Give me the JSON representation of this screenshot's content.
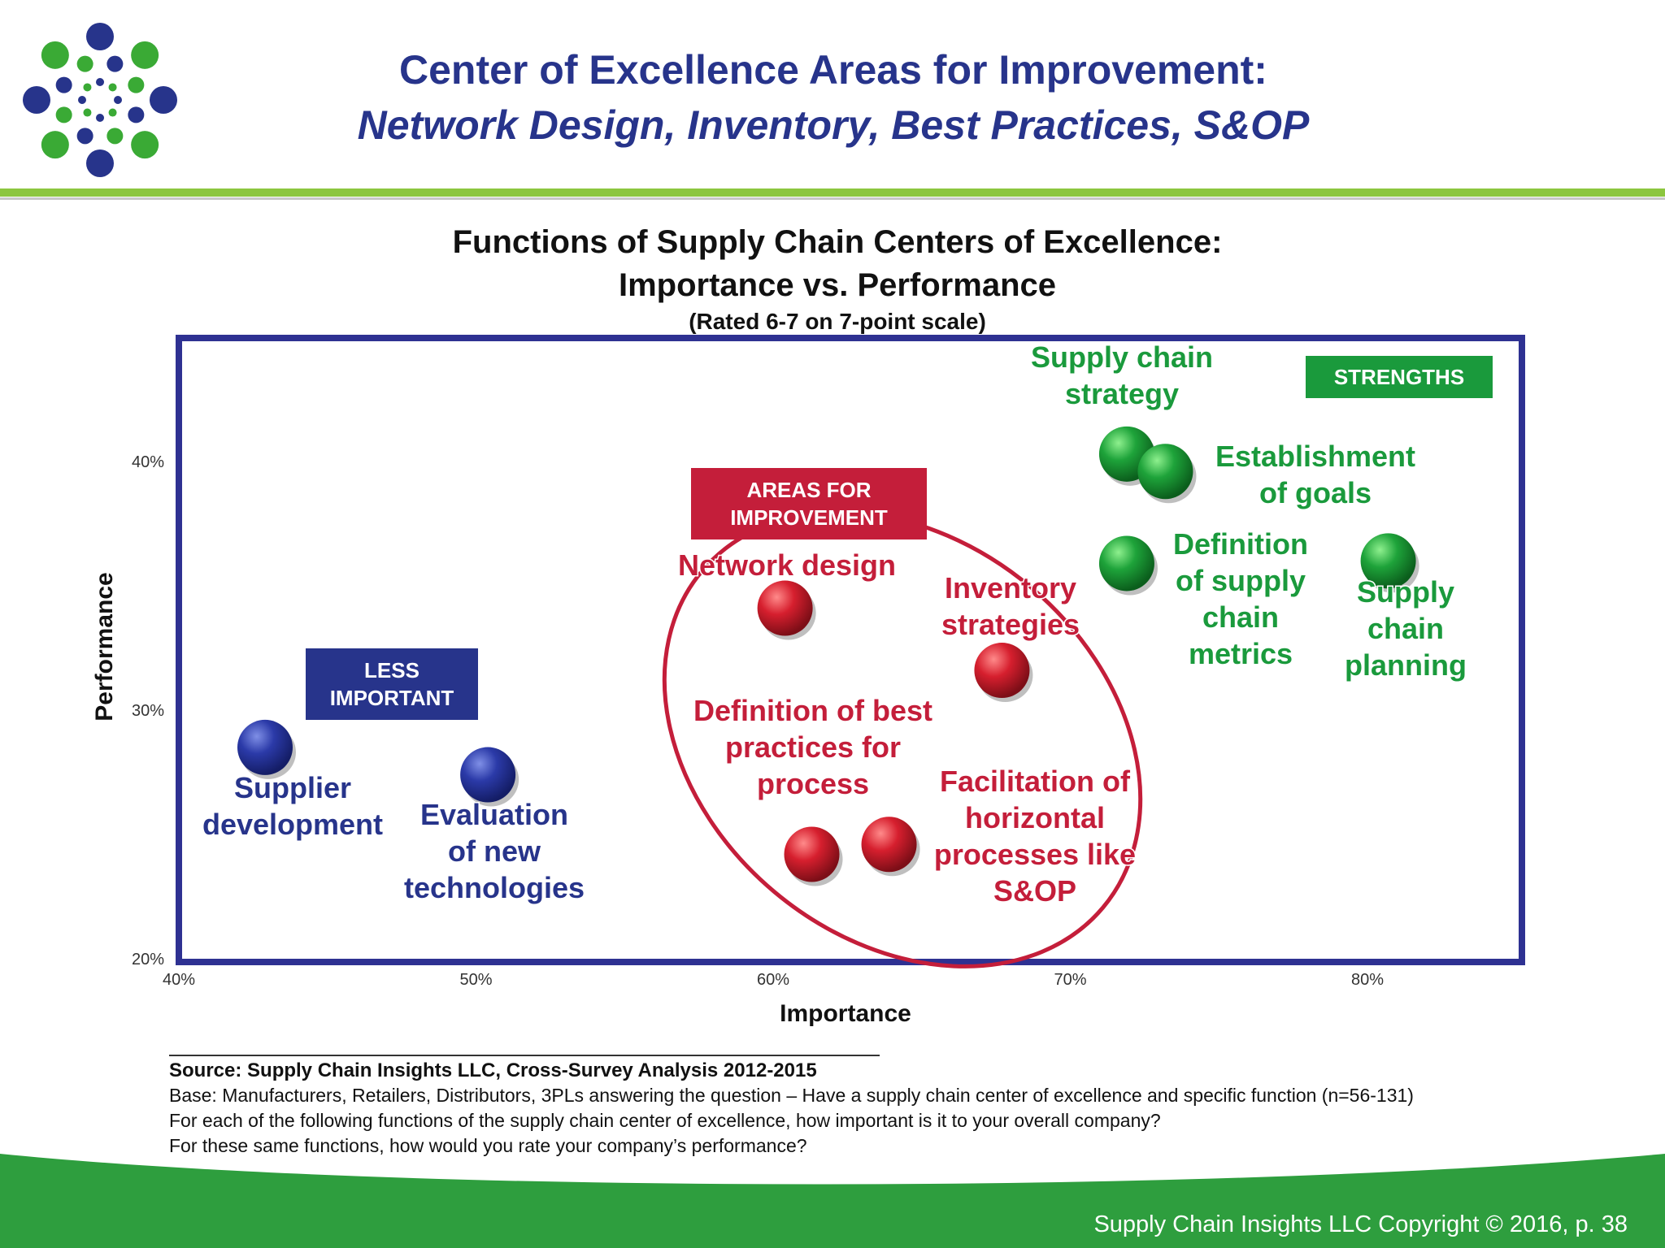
{
  "slide": {
    "title_line1": "Center of Excellence Areas for Improvement:",
    "title_line2": "Network Design, Inventory, Best Practices, S&OP",
    "copyright": "Supply Chain Insights LLC Copyright © 2016, p. 38"
  },
  "colors": {
    "navy": "#27348b",
    "green": "#1a9a3c",
    "red": "#c41e3a",
    "lime": "#8cc63f",
    "frame": "#2e3192"
  },
  "chart_data": {
    "type": "scatter",
    "title": "Functions of Supply Chain Centers of Excellence: Importance vs. Performance",
    "title_line1": "Functions of Supply Chain Centers of Excellence:",
    "title_line2": "Importance vs. Performance",
    "subtitle": "(Rated 6-7 on 7-point scale)",
    "xlabel": "Importance",
    "ylabel": "Performance",
    "xlim": [
      40,
      85
    ],
    "ylim": [
      20,
      45
    ],
    "x_ticks": [
      40,
      50,
      60,
      70,
      80
    ],
    "x_tick_labels": [
      "40%",
      "50%",
      "60%",
      "70%",
      "80%"
    ],
    "y_ticks": [
      20,
      30,
      40
    ],
    "y_tick_labels": [
      "20%",
      "30%",
      "40%"
    ],
    "grid": false,
    "groups": [
      {
        "label": "LESS IMPORTANT",
        "label_lines": [
          "LESS",
          "IMPORTANT"
        ],
        "color": "#27348b"
      },
      {
        "label": "AREAS FOR IMPROVEMENT",
        "label_lines": [
          "AREAS FOR",
          "IMPROVEMENT"
        ],
        "color": "#c41e3a"
      },
      {
        "label": "STRENGTHS",
        "label_lines": [
          "STRENGTHS"
        ],
        "color": "#1a9a3c"
      }
    ],
    "points": [
      {
        "name": "Supplier development",
        "lines": [
          "Supplier",
          "development"
        ],
        "x": 42.9,
        "y": 28.5,
        "group": 0
      },
      {
        "name": "Evaluation of new technologies",
        "lines": [
          "Evaluation",
          "of new",
          "technologies"
        ],
        "x": 50.4,
        "y": 27.4,
        "group": 0
      },
      {
        "name": "Network design",
        "lines": [
          "Network design"
        ],
        "x": 60.4,
        "y": 34.1,
        "group": 1
      },
      {
        "name": "Inventory strategies",
        "lines": [
          "Inventory",
          "strategies"
        ],
        "x": 67.7,
        "y": 31.6,
        "group": 1
      },
      {
        "name": "Definition of best practices for process",
        "lines": [
          "Definition of best",
          "practices for",
          "process"
        ],
        "x": 61.3,
        "y": 24.2,
        "group": 1
      },
      {
        "name": "Facilitation of horizontal processes like S&OP",
        "lines": [
          "Facilitation of",
          "horizontal",
          "processes like",
          "S&OP"
        ],
        "x": 63.9,
        "y": 24.6,
        "group": 1
      },
      {
        "name": "Supply chain strategy",
        "lines": [
          "Supply chain",
          "strategy"
        ],
        "x": 71.9,
        "y": 40.3,
        "group": 2
      },
      {
        "name": "Establishment of goals",
        "lines": [
          "Establishment",
          "of goals"
        ],
        "x": 73.2,
        "y": 39.6,
        "group": 2
      },
      {
        "name": "Definition of supply chain metrics",
        "lines": [
          "Definition",
          "of supply",
          "chain",
          "metrics"
        ],
        "x": 71.9,
        "y": 35.9,
        "group": 2
      },
      {
        "name": "Supply chain planning",
        "lines": [
          "Supply",
          "chain",
          "planning"
        ],
        "x": 80.7,
        "y": 36.0,
        "group": 2
      }
    ]
  },
  "source": {
    "title": "Source:  Supply Chain Insights LLC, Cross-Survey Analysis 2012-2015",
    "base": "Base:  Manufacturers, Retailers, Distributors, 3PLs answering the question – Have a supply chain center of excellence and specific function (n=56-131)",
    "q1": "For each of the following functions of the supply chain center of excellence, how important is it to your overall company?",
    "q2": "For these same functions, how would you rate your company’s performance?"
  }
}
